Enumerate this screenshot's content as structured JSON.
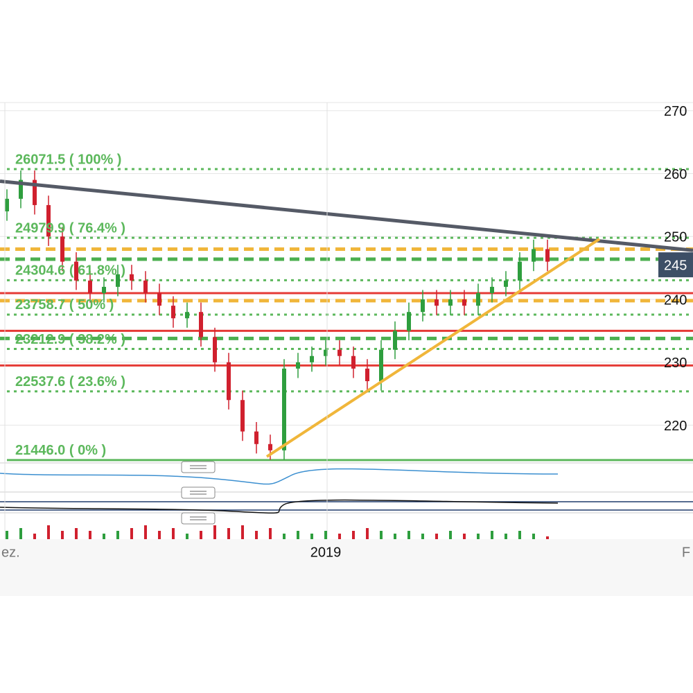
{
  "chart_data": {
    "type": "candlestick",
    "categories": [
      "ez.",
      null,
      null,
      null,
      null,
      null,
      null,
      null,
      null,
      null,
      null,
      null,
      null,
      null,
      null,
      null,
      null,
      null,
      null,
      null,
      null,
      null,
      null,
      "2019",
      null,
      null,
      null,
      null,
      null,
      null,
      null,
      null,
      null,
      null,
      null,
      null,
      null,
      null,
      null,
      null,
      null,
      null,
      null,
      null,
      null,
      null,
      null,
      null,
      null,
      "F"
    ],
    "open": [
      25400,
      25600,
      25900,
      25500,
      25000,
      24600,
      24300,
      24100,
      24200,
      24400,
      24300,
      24100,
      23900,
      23700,
      23800,
      23400,
      23000,
      22400,
      21900,
      21700,
      21600,
      22900,
      23000,
      23100,
      23200,
      23100,
      22900,
      22700,
      23200,
      23500,
      23800,
      24000,
      23900,
      24000,
      23900,
      24100,
      24200,
      24300,
      24600,
      24800,
      null,
      null,
      null,
      null,
      null,
      null,
      null,
      null,
      null,
      null
    ],
    "high": [
      25750,
      26050,
      26050,
      25650,
      25150,
      24750,
      24450,
      24350,
      24550,
      24550,
      24450,
      24250,
      24050,
      23950,
      23950,
      23550,
      23150,
      22550,
      22050,
      21850,
      23050,
      23150,
      23250,
      23350,
      23350,
      23250,
      23050,
      23350,
      23650,
      23950,
      24150,
      24150,
      24150,
      24150,
      24250,
      24350,
      24450,
      24750,
      24950,
      24950,
      null,
      null,
      null,
      null,
      null,
      null,
      null,
      null,
      null,
      null
    ],
    "low": [
      25250,
      25450,
      25350,
      24850,
      24450,
      24150,
      23950,
      23950,
      24050,
      24150,
      23950,
      23750,
      23550,
      23550,
      23250,
      22850,
      22250,
      21750,
      21550,
      21450,
      21450,
      22750,
      22850,
      22950,
      22950,
      22750,
      22550,
      22550,
      23050,
      23350,
      23650,
      23750,
      23750,
      23750,
      23750,
      23950,
      24050,
      24150,
      24450,
      24450,
      null,
      null,
      null,
      null,
      null,
      null,
      null,
      null,
      null,
      null
    ],
    "close": [
      25600,
      25900,
      25500,
      25000,
      24600,
      24300,
      24100,
      24200,
      24400,
      24300,
      24100,
      23900,
      23700,
      23800,
      23400,
      23000,
      22400,
      21900,
      21700,
      21600,
      22900,
      23000,
      23100,
      23200,
      23100,
      22900,
      22700,
      23200,
      23500,
      23800,
      24000,
      23900,
      24000,
      23900,
      24100,
      24200,
      24300,
      24600,
      24800,
      24600,
      null,
      null,
      null,
      null,
      null,
      null,
      null,
      null,
      null,
      null
    ],
    "volume": [
      3,
      4,
      2,
      5,
      3,
      4,
      3,
      2,
      3,
      4,
      5,
      3,
      4,
      2,
      3,
      5,
      4,
      5,
      3,
      4,
      2,
      3,
      2,
      3,
      2,
      3,
      4,
      3,
      2,
      3,
      2,
      2,
      3,
      2,
      2,
      3,
      2,
      3,
      2,
      1,
      null,
      null,
      null,
      null,
      null,
      null,
      null,
      null,
      null,
      null
    ],
    "up_color": "#2e9e3e",
    "down_color": "#d0202e",
    "ylim": [
      21400,
      27130
    ],
    "yticks": [
      {
        "value": 22000,
        "label": "220"
      },
      {
        "value": 23000,
        "label": "230"
      },
      {
        "value": 24000,
        "label": "240"
      },
      {
        "value": 25000,
        "label": "250"
      },
      {
        "value": 26000,
        "label": "260"
      },
      {
        "value": 27000,
        "label": "270"
      }
    ],
    "grid": true,
    "fib_levels": [
      {
        "value": 26071.5,
        "label": "26071.5 ( 100% )"
      },
      {
        "value": 24979.9,
        "label": "24979.9 ( 76.4% )"
      },
      {
        "value": 24304.6,
        "label": "24304.6 ( 61.8% )"
      },
      {
        "value": 23758.7,
        "label": "23758.7 ( 50% )"
      },
      {
        "value": 23212.9,
        "label": "23212.9 ( 38.2% )"
      },
      {
        "value": 22537.6,
        "label": "22537.6 ( 23.6% )"
      },
      {
        "value": 21446.0,
        "label": "21446.0 ( 0% )"
      }
    ],
    "levels": [
      {
        "value": 24800,
        "color": "#f0b63a",
        "style": "dashed"
      },
      {
        "value": 24640,
        "color": "#4caf50",
        "style": "dashed"
      },
      {
        "value": 24100,
        "color": "#e53935",
        "style": "solid"
      },
      {
        "value": 23980,
        "color": "#f0b63a",
        "style": "dashed"
      },
      {
        "value": 23500,
        "color": "#e53935",
        "style": "solid"
      },
      {
        "value": 23380,
        "color": "#4caf50",
        "style": "dashed"
      },
      {
        "value": 22950,
        "color": "#e53935",
        "style": "solid"
      }
    ],
    "trendlines": [
      {
        "color": "#555a66",
        "points": [
          [
            -0.5,
            25880
          ],
          [
            49.5,
            24780
          ]
        ]
      },
      {
        "color": "#f0b63a",
        "points": [
          [
            18.75,
            21500
          ],
          [
            42.75,
            24960
          ]
        ]
      }
    ],
    "price_label": {
      "value": 24550,
      "label": "245"
    }
  }
}
